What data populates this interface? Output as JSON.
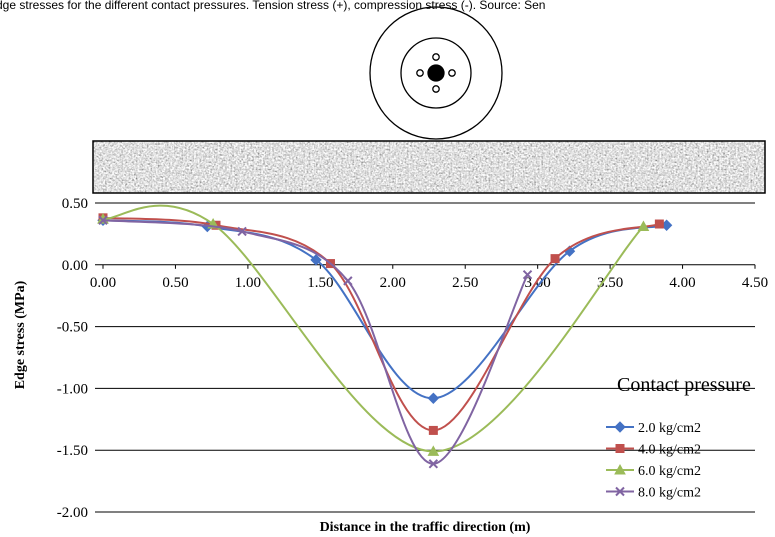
{
  "caption": "dge stresses for the different contact pressures. Tension stress (+), compression stress (-). Source: Sen",
  "chart_data": {
    "type": "line",
    "xlabel": "Distance in the traffic direction (m)",
    "ylabel": "Edge stress (MPa)",
    "legend_title": "Contact pressure",
    "legend": "right",
    "grid": true,
    "xlim": [
      0,
      4.5
    ],
    "ylim": [
      -2,
      0.5
    ],
    "xticks": [
      {
        "value": 0,
        "label": "0.00"
      },
      {
        "value": 0.5,
        "label": "0.50"
      },
      {
        "value": 1,
        "label": "1.00"
      },
      {
        "value": 1.5,
        "label": "1.50"
      },
      {
        "value": 2,
        "label": "2.00"
      },
      {
        "value": 2.5,
        "label": "2.50"
      },
      {
        "value": 3,
        "label": "3.00"
      },
      {
        "value": 3.5,
        "label": "3.50"
      },
      {
        "value": 4,
        "label": "4.00"
      },
      {
        "value": 4.5,
        "label": "4.50"
      }
    ],
    "yticks": [
      {
        "value": 0.5,
        "label": "0.50"
      },
      {
        "value": 0,
        "label": "0.00"
      },
      {
        "value": -0.5,
        "label": "-0.50"
      },
      {
        "value": -1,
        "label": "-1.00"
      },
      {
        "value": -1.5,
        "label": "-1.50"
      },
      {
        "value": -2,
        "label": "-2.00"
      }
    ],
    "series": [
      {
        "name": "2.0 kg/cm2",
        "color": "#4472c4",
        "marker": "diamond",
        "x": [
          0,
          0.72,
          1.47,
          2.28,
          3.22,
          3.89
        ],
        "values": [
          0.36,
          0.31,
          0.04,
          -1.08,
          0.11,
          0.32
        ]
      },
      {
        "name": "4.0 kg/cm2",
        "color": "#c0504d",
        "marker": "square",
        "x": [
          0,
          0.78,
          1.57,
          2.28,
          3.12,
          3.84
        ],
        "values": [
          0.38,
          0.32,
          0.01,
          -1.34,
          0.05,
          0.33
        ]
      },
      {
        "name": "6.0 kg/cm2",
        "color": "#9bbb59",
        "marker": "triangle",
        "x": [
          0,
          0.76,
          2.28,
          3.73
        ],
        "values": [
          0.37,
          0.33,
          -1.51,
          0.31
        ]
      },
      {
        "name": "8.0 kg/cm2",
        "color": "#8064a2",
        "marker": "x",
        "x": [
          0,
          0.96,
          1.69,
          2.28,
          2.93
        ],
        "values": [
          0.36,
          0.27,
          -0.13,
          -1.61,
          -0.08
        ]
      }
    ]
  }
}
